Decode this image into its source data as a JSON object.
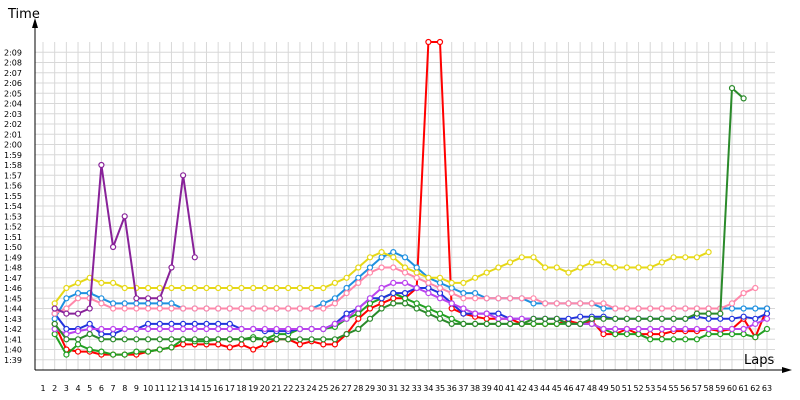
{
  "chart_data": {
    "type": "line",
    "title": "",
    "xlabel": "Laps",
    "ylabel": "Time",
    "x": [
      1,
      2,
      3,
      4,
      5,
      6,
      7,
      8,
      9,
      10,
      11,
      12,
      13,
      14,
      15,
      16,
      17,
      18,
      19,
      20,
      21,
      22,
      23,
      24,
      25,
      26,
      27,
      28,
      29,
      30,
      31,
      32,
      33,
      34,
      35,
      36,
      37,
      38,
      39,
      40,
      41,
      42,
      43,
      44,
      45,
      46,
      47,
      48,
      49,
      50,
      51,
      52,
      53,
      54,
      55,
      56,
      57,
      58,
      59,
      60,
      61,
      62,
      63
    ],
    "xlim": [
      1,
      63
    ],
    "ylim": [
      98,
      130
    ],
    "grid": true,
    "y_ticks": [
      "1:39",
      "1:40",
      "1:41",
      "1:42",
      "1:43",
      "1:44",
      "1:45",
      "1:46",
      "1:47",
      "1:48",
      "1:49",
      "1:50",
      "1:51",
      "1:52",
      "1:53",
      "1:54",
      "1:55",
      "1:56",
      "1:57",
      "1:58",
      "1:59",
      "2:00",
      "2:01",
      "2:02",
      "2:03",
      "2:04",
      "2:05",
      "2:06",
      "2:07",
      "2:08",
      "2:09"
    ],
    "x_ticks": [
      "1",
      "2",
      "3",
      "4",
      "5",
      "6",
      "7",
      "8",
      "9",
      "10",
      "11",
      "12",
      "13",
      "14",
      "15",
      "16",
      "17",
      "18",
      "19",
      "20",
      "21",
      "22",
      "23",
      "24",
      "25",
      "26",
      "27",
      "28",
      "29",
      "30",
      "31",
      "32",
      "33",
      "34",
      "35",
      "36",
      "37",
      "38",
      "39",
      "40",
      "41",
      "42",
      "43",
      "44",
      "45",
      "46",
      "47",
      "48",
      "49",
      "50",
      "51",
      "52",
      "53",
      "54",
      "55",
      "56",
      "57",
      "58",
      "59",
      "60",
      "61",
      "62",
      "63"
    ],
    "series": [
      {
        "color": "#ff0000",
        "values": [
          null,
          102.5,
          100,
          99.8,
          99.8,
          99.5,
          99.5,
          99.5,
          99.5,
          99.8,
          100,
          100.2,
          100.5,
          100.5,
          100.5,
          100.5,
          100.2,
          100.5,
          100,
          100.5,
          101,
          101,
          100.5,
          100.8,
          100.5,
          100.5,
          101.5,
          103,
          104,
          104.5,
          105,
          105,
          106,
          130,
          130,
          104,
          103.5,
          103.2,
          103,
          103,
          103,
          102.5,
          102.5,
          102.5,
          102.5,
          102.8,
          102.5,
          102.8,
          101.5,
          101.5,
          102,
          101.5,
          101.5,
          101.5,
          101.8,
          101.8,
          101.8,
          102,
          101.8,
          102,
          103,
          101.2,
          104
        ]
      },
      {
        "color": "#22a022",
        "values": [
          null,
          101.5,
          99.5,
          100.5,
          100,
          99.8,
          99.5,
          99.5,
          99.8,
          99.8,
          100,
          100.2,
          101,
          100.8,
          100.8,
          101,
          101,
          101,
          101.2,
          101,
          101.5,
          101.5,
          102,
          102,
          102,
          102.2,
          103,
          103.5,
          104.5,
          105,
          105.5,
          105,
          104.5,
          104,
          103.5,
          103,
          102.5,
          102.5,
          102.5,
          102.5,
          102.5,
          102.5,
          102.5,
          102.5,
          102.5,
          102.5,
          102.5,
          102.5,
          102,
          101.5,
          101.5,
          101.5,
          101,
          101,
          101,
          101,
          101,
          101.5,
          101.5,
          101.5,
          101.5,
          101.2,
          102
        ]
      },
      {
        "color": "#2233dd",
        "values": [
          null,
          103.5,
          102,
          102,
          102.5,
          101.5,
          101.5,
          102,
          102,
          102.5,
          102.5,
          102.5,
          102.5,
          102.5,
          102.5,
          102.5,
          102.5,
          102,
          102,
          101.8,
          101.8,
          101.8,
          102,
          102,
          102,
          102.5,
          103.5,
          104,
          105,
          105,
          105.5,
          105.5,
          106,
          106,
          105.5,
          104.5,
          103.5,
          103.5,
          103.5,
          103.5,
          103,
          103,
          103,
          103,
          103,
          103,
          103.2,
          103.2,
          103.2,
          103,
          103,
          103,
          103,
          103,
          103,
          103,
          103.2,
          103,
          103,
          103,
          103.2,
          103,
          103.5
        ]
      },
      {
        "color": "#1e90e0",
        "values": [
          null,
          103,
          105,
          105.5,
          105.5,
          105,
          104.5,
          104.5,
          104.5,
          104.5,
          104.5,
          104.5,
          104,
          104,
          104,
          104,
          104,
          104,
          104,
          104,
          104,
          104,
          104,
          104,
          104.5,
          105,
          106,
          107,
          108,
          109,
          109.5,
          109,
          108,
          107,
          106.5,
          106,
          105.5,
          105.5,
          105,
          105,
          105,
          105,
          104.5,
          104.5,
          104.5,
          104.5,
          104.5,
          104.5,
          104,
          104,
          104,
          104,
          104,
          104,
          104,
          104,
          104,
          104,
          104,
          104,
          104,
          104,
          104
        ]
      },
      {
        "color": "#e6d817",
        "values": [
          null,
          104.5,
          106,
          106.5,
          107,
          106.5,
          106.5,
          106,
          106,
          106,
          106,
          106,
          106,
          106,
          106,
          106,
          106,
          106,
          106,
          106,
          106,
          106,
          106,
          106,
          106,
          106.5,
          107,
          108,
          109,
          109.5,
          109,
          108,
          107.5,
          107,
          107,
          106.5,
          106.5,
          107,
          107.5,
          108,
          108.5,
          109,
          109,
          108,
          108,
          107.5,
          108,
          108.5,
          108.5,
          108,
          108,
          108,
          108,
          108.5,
          109,
          109,
          109,
          109.5,
          null,
          null,
          null,
          null,
          null
        ]
      },
      {
        "color": "#ff88aa",
        "values": [
          null,
          103.5,
          104,
          105,
          105,
          104.5,
          104,
          104,
          104,
          104,
          104,
          104,
          104,
          104,
          104,
          104,
          104,
          104,
          104,
          104,
          104,
          104,
          104,
          104,
          104,
          104.5,
          105.5,
          106.5,
          107.5,
          108,
          108,
          107.5,
          107,
          106.5,
          106,
          105.5,
          105,
          105,
          105,
          105,
          105,
          105,
          105,
          104.5,
          104.5,
          104.5,
          104.5,
          104.5,
          104.5,
          104,
          104,
          104,
          104,
          104,
          104,
          104,
          104,
          104,
          104,
          104.5,
          105.5,
          106,
          null
        ]
      },
      {
        "color": "#bb44ee",
        "values": [
          null,
          102,
          101.5,
          101.8,
          102,
          102,
          102,
          102,
          102,
          102,
          102,
          102,
          102,
          102,
          102,
          102,
          102,
          102,
          102,
          102,
          102,
          102,
          102,
          102,
          102,
          102.5,
          103,
          104,
          105,
          106,
          106.5,
          106.5,
          106,
          105.5,
          105,
          104.5,
          104,
          103.5,
          103.5,
          103,
          103,
          103,
          103,
          103,
          103,
          102.5,
          102.5,
          102.5,
          102,
          102,
          102,
          102,
          102,
          102,
          102,
          102,
          102,
          102,
          102,
          102,
          102,
          102.5,
          103
        ]
      },
      {
        "color": "#882299",
        "values": [
          null,
          104,
          103.5,
          103.5,
          104,
          118,
          110,
          113,
          105,
          105,
          105,
          108,
          117,
          109,
          null,
          null,
          null,
          null,
          null,
          null,
          null,
          null,
          null,
          null,
          null,
          null,
          null,
          null,
          null,
          null,
          null,
          null,
          null,
          null,
          null,
          null,
          null,
          null,
          null,
          null,
          null,
          null,
          null,
          null,
          null,
          null,
          null,
          null,
          null,
          null,
          null,
          null,
          null,
          null,
          null,
          null,
          null,
          null,
          null,
          null,
          null,
          null,
          null
        ]
      },
      {
        "color": "#2a8a2a",
        "values": [
          null,
          102.5,
          101,
          101,
          101.5,
          101,
          101,
          101,
          101,
          101,
          101,
          101,
          101,
          101,
          101,
          101,
          101,
          101,
          101,
          101,
          101,
          101,
          101,
          101,
          101,
          101,
          101.5,
          102,
          103,
          104,
          104.5,
          104.5,
          104,
          103.5,
          103,
          102.5,
          102.5,
          102.5,
          102.5,
          102.5,
          102.5,
          102.5,
          103,
          103,
          103,
          102.5,
          102.5,
          103,
          103,
          103,
          103,
          103,
          103,
          103,
          103,
          103,
          103.5,
          103.5,
          103.5,
          125.5,
          124.5,
          null,
          null
        ]
      }
    ]
  }
}
